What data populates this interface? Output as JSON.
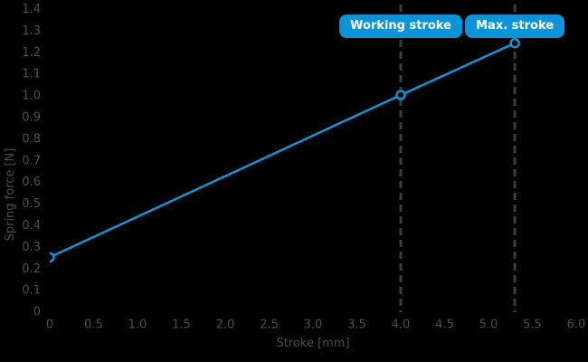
{
  "page": {
    "background_color": "#000000",
    "text_color": "#4d4d4d"
  },
  "chart_data": {
    "type": "line",
    "title": "",
    "xlabel": "Stroke [mm]",
    "ylabel": "Spring force [N]",
    "xlim": [
      0,
      6.0
    ],
    "ylim": [
      0,
      1.4
    ],
    "xticks": [
      0,
      0.5,
      1.0,
      1.5,
      2.0,
      2.5,
      3.0,
      3.5,
      4.0,
      4.5,
      5.0,
      5.5,
      6.0
    ],
    "yticks": [
      0,
      0.1,
      0.2,
      0.3,
      0.4,
      0.5,
      0.6,
      0.7,
      0.8,
      0.9,
      1.0,
      1.1,
      1.2,
      1.3,
      1.4
    ],
    "grid": false,
    "legend": "none",
    "series": [
      {
        "name": "spring-force-line",
        "color": "#1293d6",
        "marker": "open-circle",
        "points": [
          [
            0,
            0.25
          ],
          [
            4.0,
            1.0
          ],
          [
            5.3,
            1.24
          ]
        ]
      }
    ],
    "annotations": [
      {
        "label": "Working stroke",
        "x": 4.0,
        "line_style": "dashed",
        "line_color": "#3d3d3d",
        "badge_color": "#0e93d8",
        "badge_text_color": "#ffffff"
      },
      {
        "label": "Max. stroke",
        "x": 5.3,
        "line_style": "dashed",
        "line_color": "#3d3d3d",
        "badge_color": "#0e93d8",
        "badge_text_color": "#ffffff"
      }
    ]
  }
}
